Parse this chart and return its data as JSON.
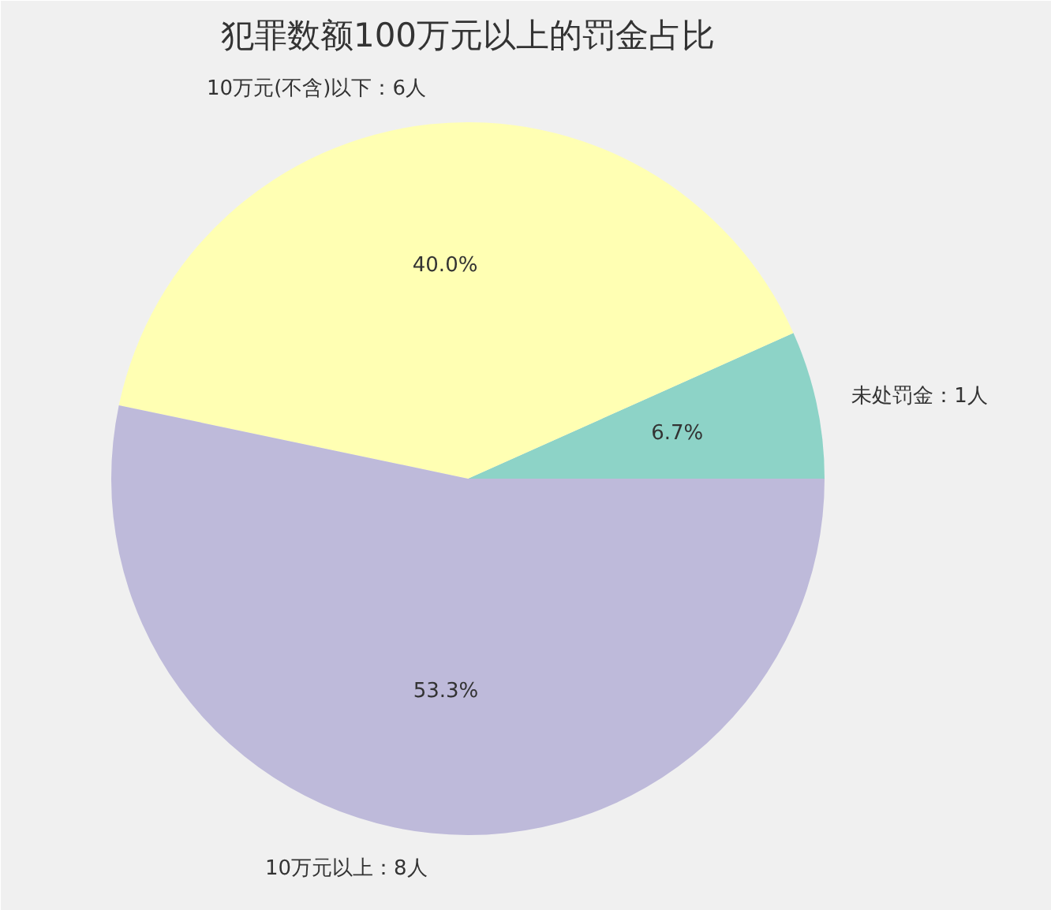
{
  "chart_data": {
    "type": "pie",
    "title": "犯罪数额100万元以上的罚金占比",
    "categories": [
      "未处罚金：1人",
      "10万元(不含)以下：6人",
      "10万元以上：8人"
    ],
    "values": [
      6.7,
      40.0,
      53.3
    ],
    "value_labels": [
      "6.7%",
      "40.0%",
      "53.3%"
    ],
    "colors": [
      "#8dd3c7",
      "#ffffb3",
      "#bebada"
    ],
    "legend": false
  }
}
